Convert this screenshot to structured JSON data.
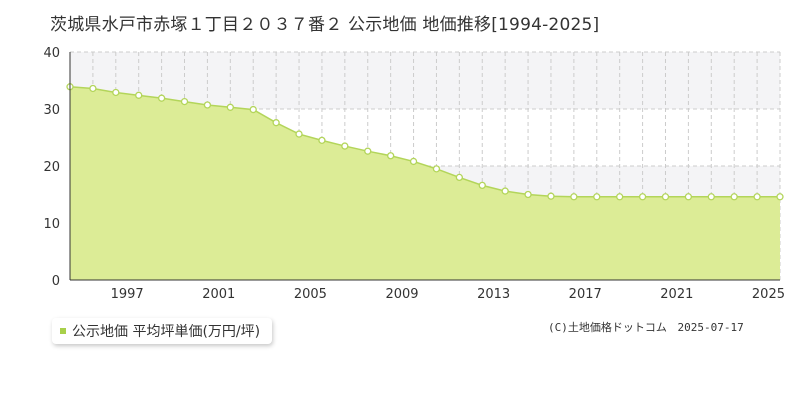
{
  "title": "茨城県水戸市赤塚１丁目２０３７番２ 公示地価 地価推移[1994-2025]",
  "legend": {
    "label": "公示地価 平均坪単価(万円/坪)"
  },
  "credit": {
    "source": "(C)土地価格ドットコム",
    "date": "2025-07-17"
  },
  "colors": {
    "fill": "#dcec96",
    "line": "#b3d55a",
    "point_fill": "#ffffff",
    "point_stroke": "#b3d55a",
    "legend": "#a8d04a",
    "band": "#f4f4f6"
  },
  "chart_data": {
    "type": "area",
    "title": "",
    "xlabel": "",
    "ylabel": "",
    "x": [
      1994,
      1995,
      1996,
      1997,
      1998,
      1999,
      2000,
      2001,
      2002,
      2003,
      2004,
      2005,
      2006,
      2007,
      2008,
      2009,
      2010,
      2011,
      2012,
      2013,
      2014,
      2015,
      2016,
      2017,
      2018,
      2019,
      2020,
      2021,
      2022,
      2023,
      2024,
      2025
    ],
    "series": [
      {
        "name": "公示地価 平均坪単価(万円/坪)",
        "values": [
          33.9,
          33.6,
          32.9,
          32.4,
          31.9,
          31.3,
          30.7,
          30.3,
          29.9,
          27.6,
          25.6,
          24.5,
          23.5,
          22.6,
          21.8,
          20.8,
          19.5,
          18.0,
          16.6,
          15.6,
          15.0,
          14.7,
          14.6,
          14.6,
          14.6,
          14.6,
          14.6,
          14.6,
          14.6,
          14.6,
          14.6,
          14.6
        ]
      }
    ],
    "xticks": [
      "1997",
      "2001",
      "2005",
      "2009",
      "2013",
      "2017",
      "2021",
      "2025"
    ],
    "yticks": [
      "0",
      "10",
      "20",
      "30",
      "40"
    ],
    "ylim": [
      0,
      40
    ],
    "xlim": [
      1994,
      2025
    ],
    "grid": true
  }
}
